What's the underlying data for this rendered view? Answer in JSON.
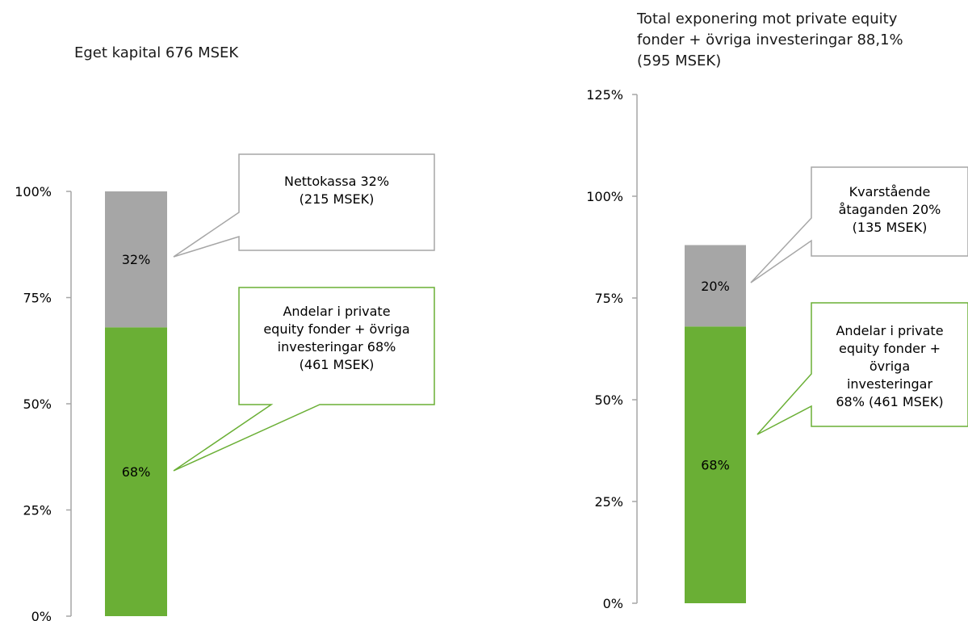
{
  "chart_data": [
    {
      "type": "bar",
      "stacked": true,
      "title": "Eget kapital 676 MSEK",
      "ylim": [
        0,
        1.0
      ],
      "y_ticks": [
        "0%",
        "25%",
        "50%",
        "75%",
        "100%"
      ],
      "grid": false,
      "series": [
        {
          "name": "Andelar i private equity fonder + övriga investeringar",
          "value": 0.68,
          "label": "68%",
          "color": "#6aaf35"
        },
        {
          "name": "Nettokassa",
          "value": 0.32,
          "label": "32%",
          "color": "#a6a6a6"
        }
      ],
      "callouts": [
        {
          "lines": [
            "Nettokassa 32%",
            "(215 MSEK)"
          ],
          "series": 1,
          "border": "#a6a6a6"
        },
        {
          "lines": [
            "Andelar i private",
            "equity fonder + övriga",
            "investeringar 68%",
            "(461 MSEK)"
          ],
          "series": 0,
          "border": "#6aaf35"
        }
      ]
    },
    {
      "type": "bar",
      "stacked": true,
      "title": "Total exponering mot private equity fonder + övriga investeringar 88,1% (595 MSEK)",
      "title_lines": [
        "Total exponering mot private equity",
        "fonder + övriga investeringar 88,1%",
        "(595 MSEK)"
      ],
      "ylim": [
        0,
        1.25
      ],
      "y_ticks": [
        "0%",
        "25%",
        "50%",
        "75%",
        "100%",
        "125%"
      ],
      "grid": false,
      "series": [
        {
          "name": "Andelar i private equity fonder + övriga investeringar",
          "value": 0.68,
          "label": "68%",
          "color": "#6aaf35"
        },
        {
          "name": "Kvarstående åtaganden",
          "value": 0.2,
          "label": "20%",
          "color": "#a6a6a6"
        }
      ],
      "callouts": [
        {
          "lines": [
            "Kvarstående",
            "åtaganden 20%",
            "(135 MSEK)"
          ],
          "series": 1,
          "border": "#a6a6a6"
        },
        {
          "lines": [
            "Andelar i private",
            "equity fonder +",
            "övriga",
            "investeringar",
            "68% (461 MSEK)"
          ],
          "series": 0,
          "border": "#6aaf35"
        }
      ]
    }
  ]
}
